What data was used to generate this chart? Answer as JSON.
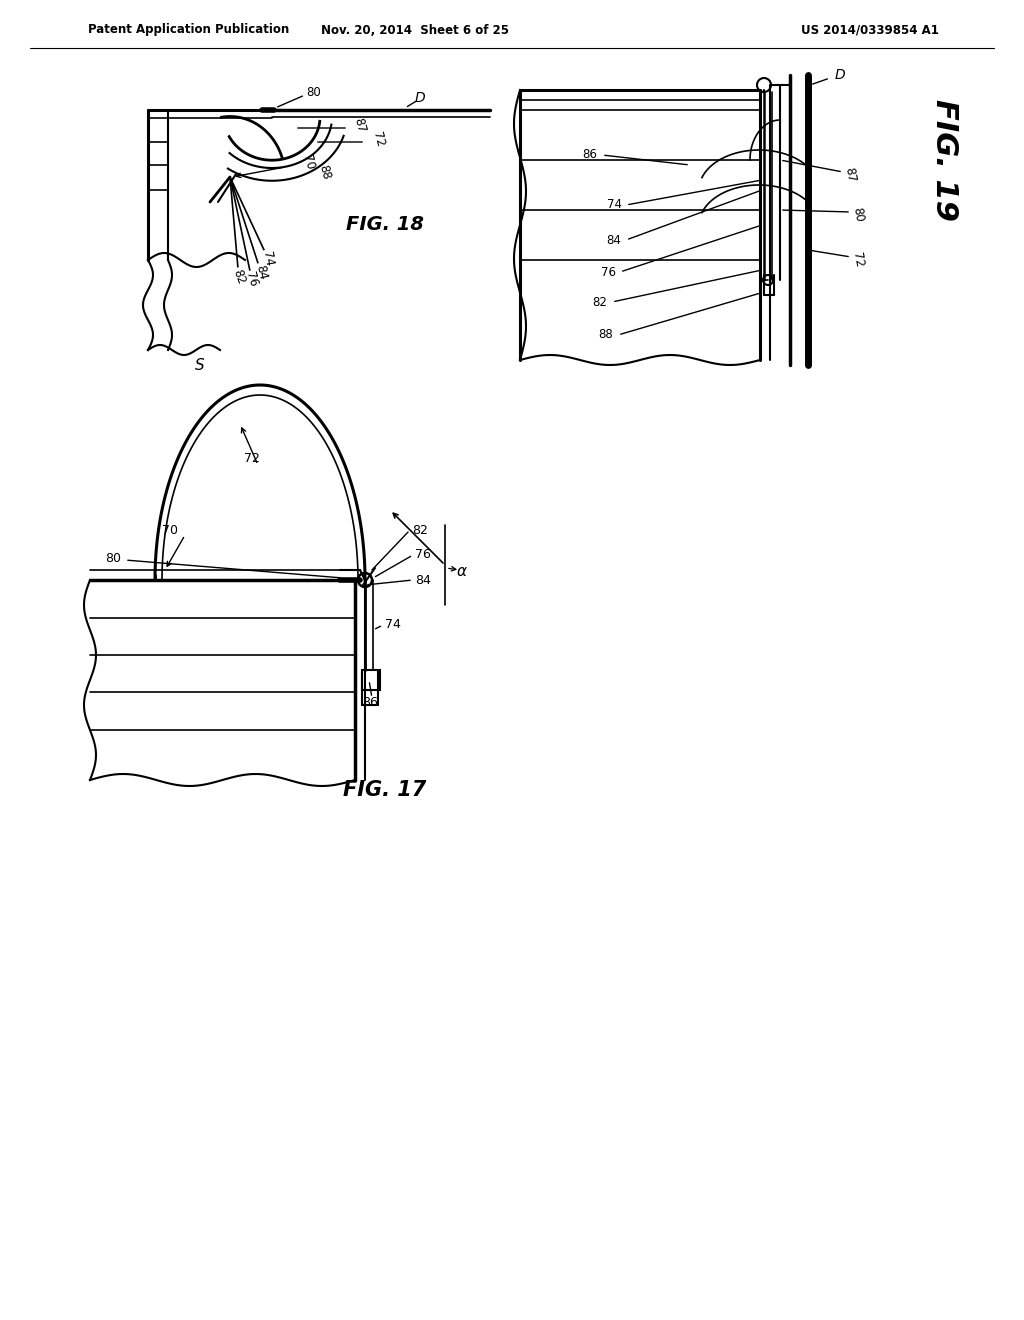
{
  "bg_color": "#ffffff",
  "line_color": "#000000",
  "header_left": "Patent Application Publication",
  "header_mid": "Nov. 20, 2014  Sheet 6 of 25",
  "header_right": "US 2014/0339854 A1",
  "fig18_label": "FIG. 18",
  "fig17_label": "FIG. 17",
  "fig19_label": "FIG. 19"
}
